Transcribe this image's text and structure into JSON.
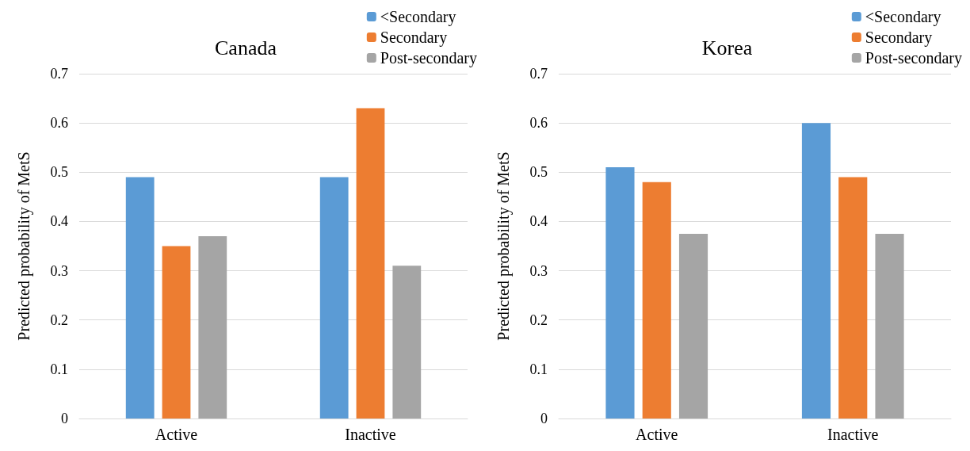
{
  "chart_data": [
    {
      "type": "bar",
      "title": "Canada",
      "ylabel": "Predicted probability of MetS",
      "categories": [
        "Active",
        "Inactive"
      ],
      "series": [
        {
          "name": "<Secondary",
          "color": "#5b9bd5",
          "values": [
            0.49,
            0.49
          ]
        },
        {
          "name": "Secondary",
          "color": "#ed7d31",
          "values": [
            0.35,
            0.63
          ]
        },
        {
          "name": "Post-secondary",
          "color": "#a5a5a5",
          "values": [
            0.37,
            0.31
          ]
        }
      ],
      "ylim": [
        0,
        0.7
      ],
      "yticks": [
        0,
        0.1,
        0.2,
        0.3,
        0.4,
        0.5,
        0.6,
        0.7
      ],
      "grid": "y",
      "legend": "top right"
    },
    {
      "type": "bar",
      "title": "Korea",
      "ylabel": "Predicted probability of MetS",
      "categories": [
        "Active",
        "Inactive"
      ],
      "series": [
        {
          "name": "<Secondary",
          "color": "#5b9bd5",
          "values": [
            0.51,
            0.6
          ]
        },
        {
          "name": "Secondary",
          "color": "#ed7d31",
          "values": [
            0.48,
            0.49
          ]
        },
        {
          "name": "Post-secondary",
          "color": "#a5a5a5",
          "values": [
            0.375,
            0.375
          ]
        }
      ],
      "ylim": [
        0,
        0.7
      ],
      "yticks": [
        0,
        0.1,
        0.2,
        0.3,
        0.4,
        0.5,
        0.6,
        0.7
      ],
      "grid": "y",
      "legend": "top right"
    }
  ]
}
